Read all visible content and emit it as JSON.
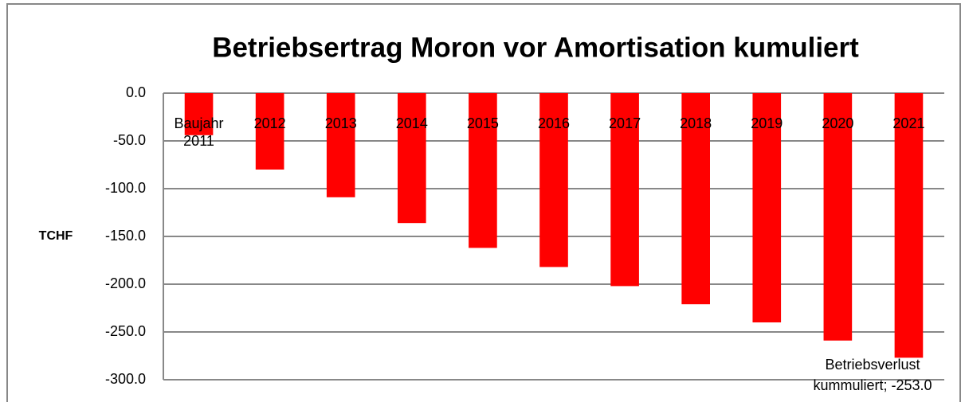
{
  "chart_data": {
    "type": "bar",
    "title": "Betriebsertrag Moron vor Amortisation kumuliert",
    "y_label": "TCHF",
    "categories": [
      "Baujahr 2011",
      "2012",
      "2013",
      "2014",
      "2015",
      "2016",
      "2017",
      "2018",
      "2019",
      "2020",
      "2021"
    ],
    "values": [
      -44,
      -80,
      -109,
      -136,
      -162,
      -182,
      -202,
      -221,
      -240,
      -259,
      -277
    ],
    "color": "#ff0000",
    "ylim": [
      -300,
      0
    ],
    "yticks": [
      {
        "value": 0,
        "label": "0.0"
      },
      {
        "value": -50,
        "label": "-50.0"
      },
      {
        "value": -100,
        "label": "-100.0"
      },
      {
        "value": -150,
        "label": "-150.0"
      },
      {
        "value": -200,
        "label": "-200.0"
      },
      {
        "value": -250,
        "label": "-250.0"
      },
      {
        "value": -300,
        "label": "-300.0"
      }
    ],
    "grid": true,
    "annotation": "Betriebsverlust kummuliert; -253.0"
  }
}
